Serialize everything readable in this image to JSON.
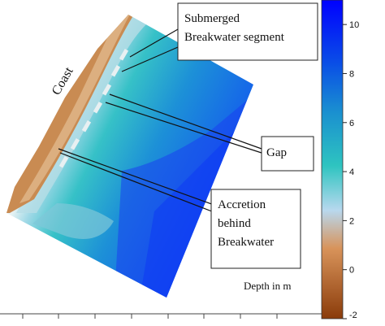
{
  "figure": {
    "coast_label": "Coast",
    "depth_label": "Depth in m",
    "callouts": {
      "submerged_line1": "Submerged",
      "submerged_line2": "Breakwater segment",
      "gap": "Gap",
      "accretion_line1": "Accretion",
      "accretion_line2": "behind",
      "accretion_line3": "Breakwater"
    }
  },
  "colorbar": {
    "range": [
      -2,
      11
    ],
    "ticks": [
      10,
      8,
      6,
      4,
      2,
      0,
      -2
    ],
    "tick_labels": [
      "10",
      "8",
      "6",
      "4",
      "2",
      "0",
      "-2"
    ],
    "colors": [
      "#0000ff",
      "#0a4fe6",
      "#1a8fd0",
      "#2ec4c0",
      "#b8d8ee",
      "#d8935a",
      "#8a3b0a"
    ]
  }
}
